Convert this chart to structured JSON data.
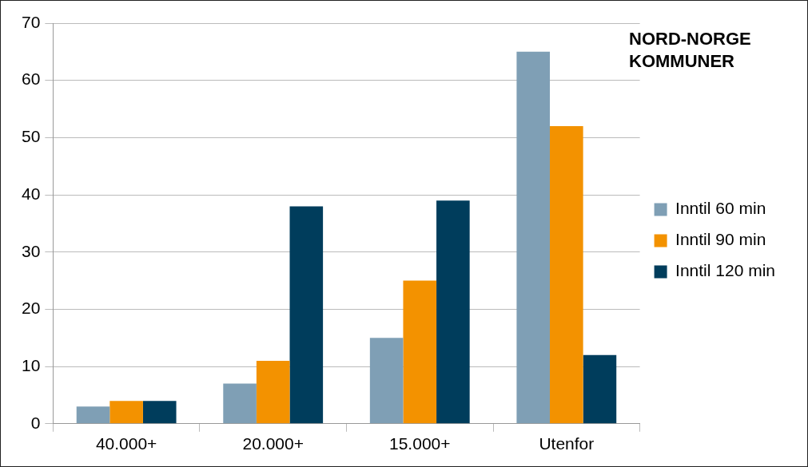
{
  "chart_data": {
    "type": "bar",
    "title": "NORD-NORGE KOMMUNER",
    "categories": [
      "40.000+",
      "20.000+",
      "15.000+",
      "Utenfor"
    ],
    "series": [
      {
        "name": "Inntil 60 min",
        "color": "#7f9fb5",
        "values": [
          3,
          7,
          15,
          65
        ]
      },
      {
        "name": "Inntil 90 min",
        "color": "#f39200",
        "values": [
          4,
          11,
          25,
          52
        ]
      },
      {
        "name": "Inntil 120 min",
        "color": "#003d5c",
        "values": [
          4,
          38,
          39,
          12
        ]
      }
    ],
    "ylim": [
      0,
      70
    ],
    "yticks": [
      0,
      10,
      20,
      30,
      40,
      50,
      60,
      70
    ],
    "grid": "y",
    "legend": "right"
  }
}
